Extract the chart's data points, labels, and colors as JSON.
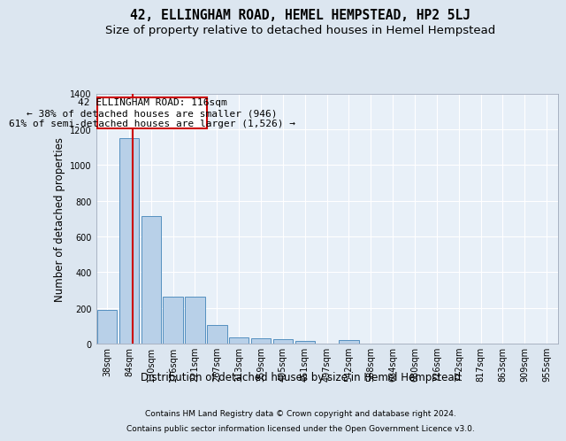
{
  "title": "42, ELLINGHAM ROAD, HEMEL HEMPSTEAD, HP2 5LJ",
  "subtitle": "Size of property relative to detached houses in Hemel Hempstead",
  "xlabel": "Distribution of detached houses by size in Hemel Hempstead",
  "ylabel": "Number of detached properties",
  "footnote1": "Contains HM Land Registry data © Crown copyright and database right 2024.",
  "footnote2": "Contains public sector information licensed under the Open Government Licence v3.0.",
  "bin_labels": [
    "38sqm",
    "84sqm",
    "130sqm",
    "176sqm",
    "221sqm",
    "267sqm",
    "313sqm",
    "359sqm",
    "405sqm",
    "451sqm",
    "497sqm",
    "542sqm",
    "588sqm",
    "634sqm",
    "680sqm",
    "726sqm",
    "772sqm",
    "817sqm",
    "863sqm",
    "909sqm",
    "955sqm"
  ],
  "bar_values": [
    190,
    1150,
    715,
    265,
    265,
    105,
    35,
    30,
    25,
    15,
    0,
    20,
    0,
    0,
    0,
    0,
    0,
    0,
    0,
    0,
    0
  ],
  "bar_color": "#b8d0e8",
  "bar_edge_color": "#5590c0",
  "bg_color": "#dce6f0",
  "plot_bg_color": "#e8f0f8",
  "grid_color": "#ffffff",
  "ylim": [
    0,
    1400
  ],
  "yticks": [
    0,
    200,
    400,
    600,
    800,
    1000,
    1200,
    1400
  ],
  "property_line_color": "#cc0000",
  "annotation_text_line1": "42 ELLINGHAM ROAD: 116sqm",
  "annotation_text_line2": "← 38% of detached houses are smaller (946)",
  "annotation_text_line3": "61% of semi-detached houses are larger (1,526) →",
  "annotation_box_edgecolor": "#cc0000",
  "title_fontsize": 10.5,
  "subtitle_fontsize": 9.5,
  "axis_label_fontsize": 8.5,
  "tick_fontsize": 7,
  "annotation_fontsize": 8,
  "ylabel_fontsize": 8.5,
  "footnote_fontsize": 6.5
}
